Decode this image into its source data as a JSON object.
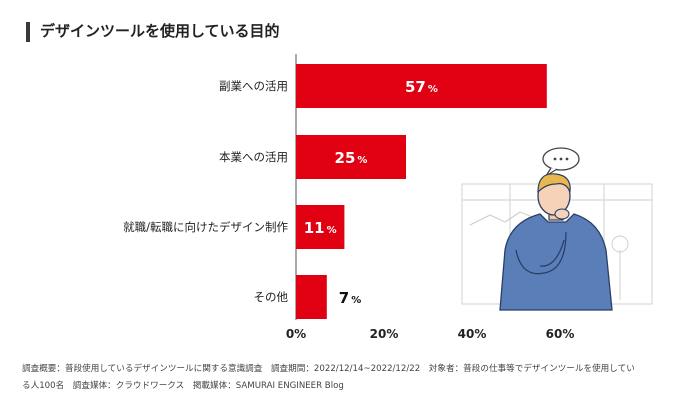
{
  "header": {
    "title": "デザインツールを使用している目的"
  },
  "chart_data": {
    "type": "bar",
    "orientation": "horizontal",
    "title": "デザインツールを使用している目的",
    "categories": [
      "副業への活用",
      "本業への活用",
      "就職/転職に向けたデザイン制作",
      "その他"
    ],
    "values": [
      57,
      25,
      11,
      7
    ],
    "value_suffix": "%",
    "xlim": [
      0,
      60
    ],
    "xticks": [
      "0%",
      "20%",
      "40%",
      "60%"
    ],
    "xtick_values": [
      0,
      20,
      40,
      60
    ],
    "grid": false,
    "bar_color": "#e00012",
    "label_color_inside": "#ffffff",
    "label_color_outside": "#111111"
  },
  "footer": {
    "line1": "調査概要：普段使用しているデザインツールに関する意識調査　調査期間：2022/12/14~2022/12/22　対象者：普段の仕事等でデザインツールを使用してい",
    "line2": "る人100名　調査媒体：クラウドワークス　掲載媒体：SAMURAI ENGINEER Blog"
  },
  "illustration": {
    "speech_bubble_text": "•••"
  }
}
